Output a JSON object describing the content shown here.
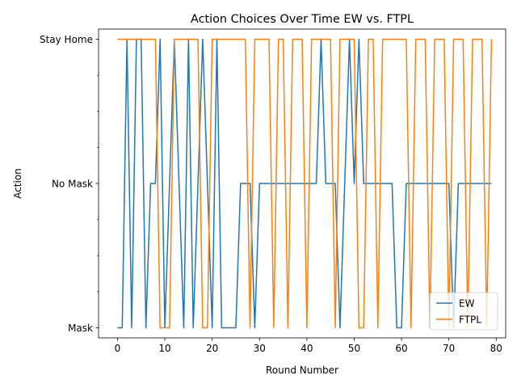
{
  "chart_data": {
    "type": "line",
    "title": "Action Choices Over Time EW vs. FTPL",
    "xlabel": "Round Number",
    "ylabel": "Action",
    "xlim": [
      -4,
      82
    ],
    "ylim": [
      -0.07,
      2.07
    ],
    "xticks": [
      0,
      10,
      20,
      30,
      40,
      50,
      60,
      70,
      80
    ],
    "yticks": [
      {
        "value": 0,
        "label": "Mask"
      },
      {
        "value": 1,
        "label": "No Mask"
      },
      {
        "value": 2,
        "label": "Stay Home"
      }
    ],
    "minor_yticks": [
      0.25,
      0.5,
      0.75,
      1.25,
      1.5,
      1.75
    ],
    "grid": false,
    "legend_position": "lower-right",
    "series": [
      {
        "name": "EW",
        "color": "#1f77b4",
        "x": [
          0,
          1,
          2,
          3,
          4,
          5,
          6,
          7,
          8,
          9,
          10,
          11,
          12,
          13,
          14,
          15,
          16,
          17,
          18,
          19,
          20,
          21,
          22,
          23,
          24,
          25,
          26,
          27,
          28,
          29,
          30,
          31,
          32,
          33,
          34,
          35,
          36,
          37,
          38,
          39,
          40,
          41,
          42,
          43,
          44,
          45,
          46,
          47,
          48,
          49,
          50,
          51,
          52,
          53,
          54,
          55,
          56,
          57,
          58,
          59,
          60,
          61,
          62,
          63,
          64,
          65,
          66,
          67,
          68,
          69,
          70,
          71,
          72,
          73,
          74,
          75,
          76,
          77,
          78,
          79
        ],
        "y": [
          0,
          0,
          2,
          0,
          2,
          2,
          0,
          1,
          1,
          2,
          0,
          1,
          2,
          1,
          0,
          2,
          0,
          1,
          2,
          1,
          0,
          2,
          0,
          0,
          0,
          0,
          1,
          1,
          1,
          0,
          1,
          1,
          1,
          1,
          1,
          1,
          1,
          1,
          1,
          1,
          1,
          1,
          1,
          2,
          1,
          1,
          1,
          0,
          1,
          2,
          1,
          2,
          1,
          1,
          1,
          1,
          1,
          1,
          1,
          0,
          0,
          1,
          1,
          1,
          1,
          1,
          1,
          1,
          1,
          1,
          1,
          0,
          1,
          1,
          1,
          1,
          1,
          1,
          1,
          1
        ]
      },
      {
        "name": "FTPL",
        "color": "#ff7f0e",
        "x": [
          0,
          1,
          2,
          3,
          4,
          5,
          6,
          7,
          8,
          9,
          10,
          11,
          12,
          13,
          14,
          15,
          16,
          17,
          18,
          19,
          20,
          21,
          22,
          23,
          24,
          25,
          26,
          27,
          28,
          29,
          30,
          31,
          32,
          33,
          34,
          35,
          36,
          37,
          38,
          39,
          40,
          41,
          42,
          43,
          44,
          45,
          46,
          47,
          48,
          49,
          50,
          51,
          52,
          53,
          54,
          55,
          56,
          57,
          58,
          59,
          60,
          61,
          62,
          63,
          64,
          65,
          66,
          67,
          68,
          69,
          70,
          71,
          72,
          73,
          74,
          75,
          76,
          77,
          78,
          79
        ],
        "y": [
          2,
          2,
          2,
          2,
          2,
          2,
          2,
          2,
          2,
          0,
          0,
          0,
          2,
          2,
          2,
          2,
          2,
          2,
          0,
          0,
          2,
          2,
          2,
          2,
          2,
          2,
          2,
          2,
          0,
          2,
          2,
          2,
          2,
          0,
          2,
          2,
          0,
          2,
          2,
          2,
          0,
          2,
          2,
          2,
          2,
          2,
          0,
          2,
          2,
          2,
          2,
          0,
          0,
          2,
          2,
          0,
          2,
          2,
          2,
          2,
          2,
          2,
          0,
          2,
          2,
          2,
          0,
          2,
          2,
          2,
          0,
          2,
          2,
          2,
          0,
          2,
          2,
          2,
          0,
          2
        ]
      }
    ]
  }
}
